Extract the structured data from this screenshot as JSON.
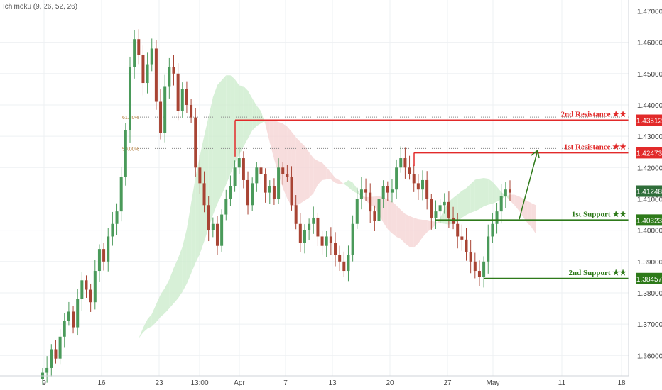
{
  "indicator": "Ichimoku (9, 26, 52, 26)",
  "colors": {
    "bull": "#4a9a5a",
    "bear": "#a84434",
    "resistance": "#e22a2a",
    "support": "#2e7a1a",
    "cloud_bull": "#cdeccd",
    "cloud_bear": "#f5d5d5",
    "current_price_tag": "#2f6e3a",
    "grid": "#eef0f3"
  },
  "chart_data": {
    "type": "candlestick",
    "xlabel": "",
    "ylabel": "",
    "ylim": [
      1.3535,
      1.4735
    ],
    "y_ticks": [
      "1.47000",
      "1.46000",
      "1.45000",
      "1.44000",
      "1.43000",
      "1.42000",
      "1.41000",
      "1.40000",
      "1.39000",
      "1.38000",
      "1.37000",
      "1.36000"
    ],
    "x_ticks": [
      "9",
      "16",
      "23",
      "13:00",
      "Apr",
      "7",
      "13",
      "20",
      "27",
      "May",
      "11",
      "18"
    ],
    "grid": true,
    "fib_levels": [
      {
        "label": "61.80%",
        "value": 1.4361
      },
      {
        "label": "50.00%",
        "value": 1.4261
      }
    ],
    "levels": [
      {
        "label": "2nd Resistance ★★",
        "value": 1.43512,
        "tag": "1.43512",
        "kind": "resistance"
      },
      {
        "label": "1st Resistance ★★",
        "value": 1.42473,
        "tag": "1.42473",
        "kind": "resistance"
      },
      {
        "label": "1st Support ★★",
        "value": 1.40323,
        "tag": "1.40323",
        "kind": "support"
      },
      {
        "label": "2nd Support ★★",
        "value": 1.38457,
        "tag": "1.38457",
        "kind": "support"
      }
    ],
    "current_price": {
      "value": 1.41248,
      "tag": "1.41248"
    },
    "projection": {
      "from": 1.4035,
      "to": 1.4255
    },
    "series": [
      {
        "values": [
          1.3545,
          1.356,
          1.362,
          1.359,
          1.366,
          1.371,
          1.374,
          1.369,
          1.378,
          1.384,
          1.381,
          1.377,
          1.387,
          1.394,
          1.39,
          1.398,
          1.402,
          1.406,
          1.417,
          1.432,
          1.452,
          1.461,
          1.456,
          1.447,
          1.453,
          1.458,
          1.441,
          1.431,
          1.446,
          1.452,
          1.45,
          1.438,
          1.445,
          1.44,
          1.436,
          1.42,
          1.415,
          1.408,
          1.4,
          1.402,
          1.395,
          1.405,
          1.41,
          1.414,
          1.42,
          1.423,
          1.416,
          1.408,
          1.415,
          1.42,
          1.418,
          1.412,
          1.414,
          1.41,
          1.42,
          1.418,
          1.417,
          1.408,
          1.402,
          1.396,
          1.4,
          1.402,
          1.404,
          1.398,
          1.395,
          1.398,
          1.396,
          1.392,
          1.39,
          1.387,
          1.392,
          1.402,
          1.41,
          1.413,
          1.412,
          1.406,
          1.403,
          1.41,
          1.414,
          1.412,
          1.413,
          1.42,
          1.423,
          1.42,
          1.418,
          1.415,
          1.413,
          1.416,
          1.41,
          1.404,
          1.406,
          1.408,
          1.409,
          1.404,
          1.402,
          1.398,
          1.397,
          1.393,
          1.39,
          1.387,
          1.385,
          1.39,
          1.398,
          1.402,
          1.406,
          1.411,
          1.413,
          1.412
        ]
      }
    ]
  }
}
